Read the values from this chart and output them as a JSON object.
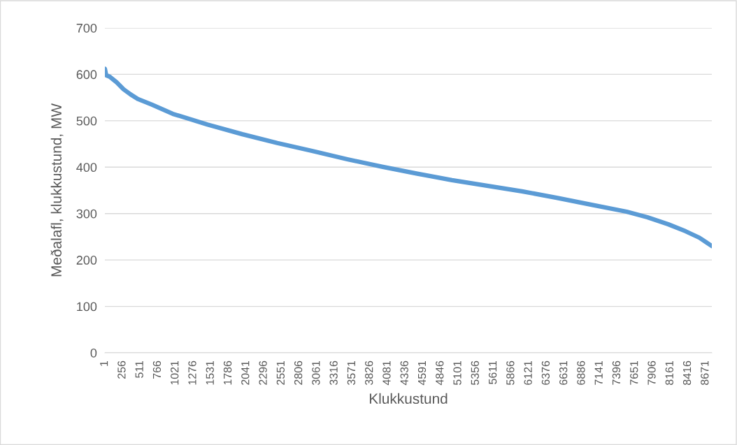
{
  "chart_data": {
    "type": "line",
    "xlabel": "Klukkustund",
    "ylabel": "Meðalafl, klukkustund, MW",
    "x": [
      1,
      20,
      70,
      170,
      270,
      370,
      475,
      676,
      980,
      1480,
      1985,
      2490,
      2990,
      3500,
      4000,
      4510,
      5010,
      5515,
      6020,
      6520,
      7025,
      7530,
      7830,
      8130,
      8380,
      8580,
      8680,
      8760
    ],
    "series": [
      {
        "color": "#5b9bd5",
        "values": [
          612,
          598,
          595,
          583,
          568,
          557,
          547,
          535,
          515,
          492,
          471,
          452,
          435,
          417,
          401,
          386,
          372,
          360,
          348,
          334,
          319,
          304,
          292,
          277,
          262,
          248,
          238,
          230
        ]
      }
    ],
    "xlim": [
      1,
      8760
    ],
    "xticks": [
      1,
      256,
      511,
      766,
      1021,
      1276,
      1531,
      1786,
      2041,
      2296,
      2551,
      2806,
      3061,
      3316,
      3571,
      3826,
      4081,
      4336,
      4591,
      4846,
      5101,
      5356,
      5611,
      5866,
      6121,
      6376,
      6631,
      6886,
      7141,
      7396,
      7651,
      7906,
      8161,
      8416,
      8671
    ],
    "ylim": [
      0,
      700
    ],
    "yticks": [
      0,
      100,
      200,
      300,
      400,
      500,
      600,
      700
    ],
    "grid": "y",
    "marker": "none",
    "line_style": "solid"
  }
}
